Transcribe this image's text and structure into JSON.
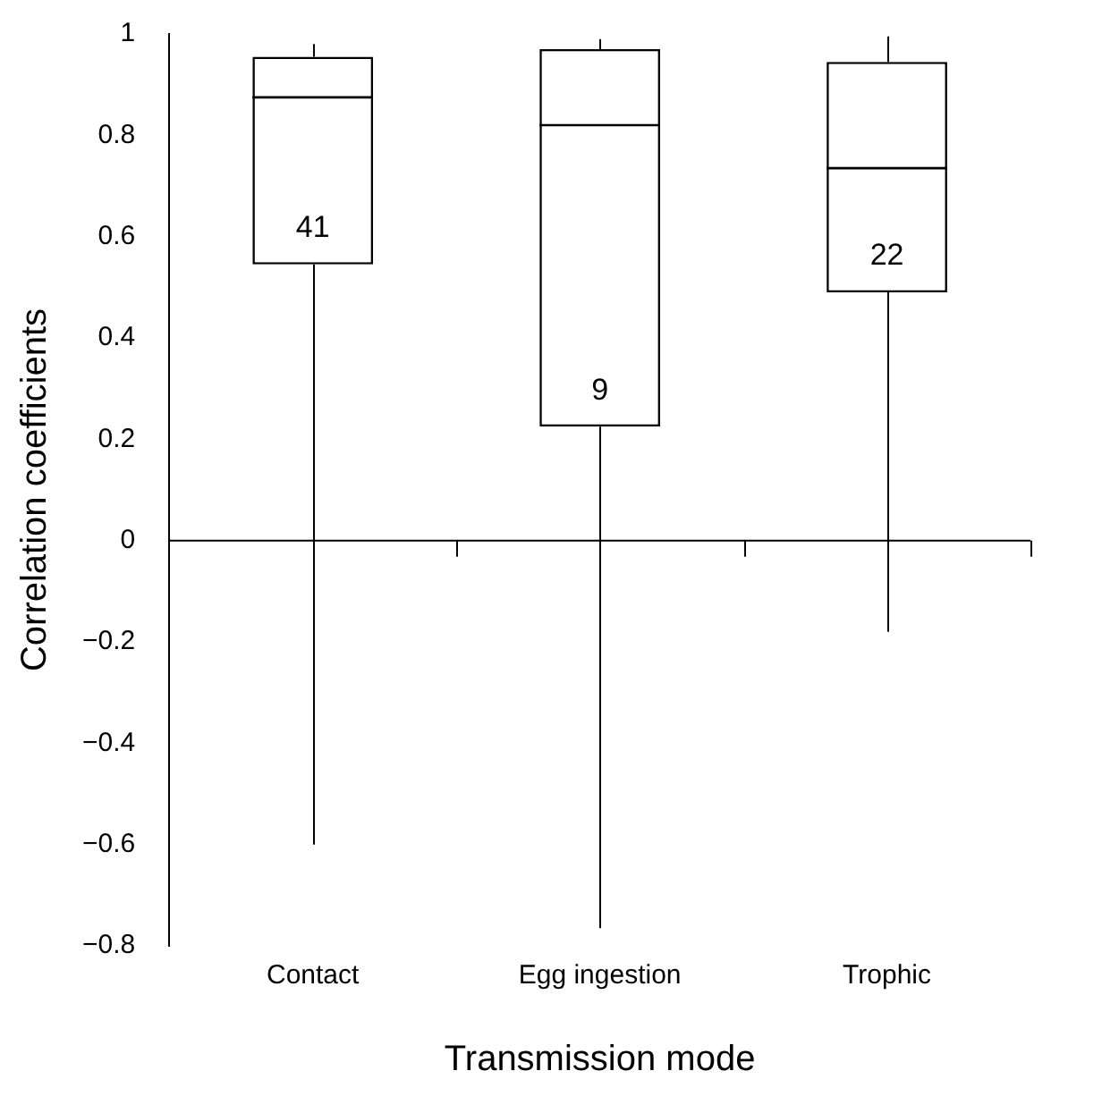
{
  "chart_data": {
    "type": "box",
    "xlabel": "Transmission mode",
    "ylabel": "Correlation coefficients",
    "categories": [
      "Contact",
      "Egg ingestion",
      "Trophic"
    ],
    "color": "#000000",
    "boxes": [
      {
        "low": -0.6,
        "q1": 0.545,
        "median": 0.875,
        "q3": 0.955,
        "high": 0.98
      },
      {
        "low": -0.765,
        "q1": 0.225,
        "median": 0.82,
        "q3": 0.97,
        "high": 0.99
      },
      {
        "low": -0.18,
        "q1": 0.49,
        "median": 0.735,
        "q3": 0.945,
        "high": 0.995
      }
    ],
    "ylim": [
      -0.8,
      1
    ],
    "yticks": [
      -0.8,
      -0.6,
      -0.4,
      -0.2,
      0,
      0.2,
      0.4,
      0.6,
      0.8,
      1
    ],
    "annotations": [
      "41",
      "9",
      "22"
    ],
    "ref_lines": [
      {
        "axis": "y",
        "value": 0
      }
    ],
    "grid": false,
    "legend": false
  }
}
